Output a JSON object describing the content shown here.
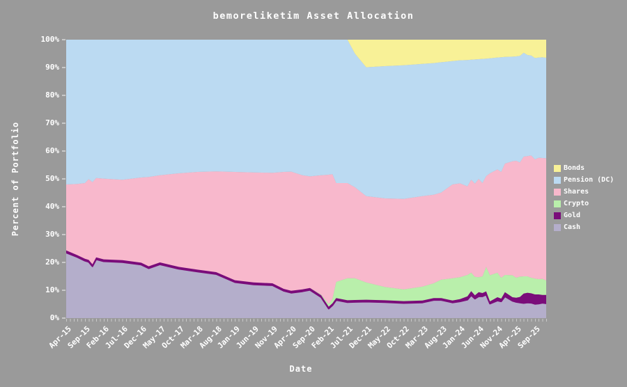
{
  "title": "bemoreliketim Asset Allocation",
  "axes": {
    "y_label": "Percent of Portfolio",
    "x_label": "Date",
    "y_tick_labels": [
      "0%",
      "10%",
      "20%",
      "30%",
      "40%",
      "50%",
      "60%",
      "70%",
      "80%",
      "90%",
      "100%"
    ]
  },
  "colors": {
    "background": "#9a9a9a",
    "text": "#ffffff",
    "tick": "#c9c9c9"
  },
  "legend": {
    "items": [
      {
        "label": "Bonds",
        "color": "#f8f197"
      },
      {
        "label": "Pension (DC)",
        "color": "#bbdaf2"
      },
      {
        "label": "Shares",
        "color": "#f8b8cc"
      },
      {
        "label": "Crypto",
        "color": "#b9efab"
      },
      {
        "label": "Gold",
        "color": "#7a0d7a"
      },
      {
        "label": "Cash",
        "color": "#b4aecb"
      }
    ]
  },
  "chart_data": {
    "type": "area",
    "stacked": true,
    "title": "bemoreliketim Asset Allocation",
    "xlabel": "Date",
    "ylabel": "Percent of Portfolio",
    "ylim": [
      0,
      100
    ],
    "grid": false,
    "legend_position": "right",
    "x_unit": "months since Apr-2015",
    "x_range": [
      0,
      128
    ],
    "x_axis_ticks": {
      "months": [
        0,
        5,
        10,
        15,
        20,
        25,
        30,
        35,
        40,
        45,
        50,
        55,
        60,
        65,
        70,
        75,
        80,
        85,
        90,
        95,
        100,
        105,
        110,
        115,
        120,
        125
      ],
      "labels": [
        "Apr-15",
        "Sep-15",
        "Feb-16",
        "Jul-16",
        "Dec-16",
        "May-17",
        "Oct-17",
        "Mar-18",
        "Aug-18",
        "Jan-19",
        "Jun-19",
        "Nov-19",
        "Apr-20",
        "Sep-20",
        "Feb-21",
        "Jul-21",
        "Dec-21",
        "May-22",
        "Oct-22",
        "Mar-23",
        "Aug-23",
        "Jan-24",
        "Jun-24",
        "Nov-24",
        "Apr-25",
        "Sep-25"
      ]
    },
    "x_months": [
      0,
      3,
      5,
      6,
      7,
      8,
      10,
      15,
      20,
      22,
      25,
      30,
      35,
      40,
      45,
      50,
      55,
      58,
      60,
      63,
      65,
      68,
      70,
      71,
      72,
      75,
      77,
      80,
      85,
      90,
      95,
      98,
      100,
      103,
      105,
      107,
      108,
      109,
      110,
      111,
      112,
      113,
      115,
      116,
      117,
      119,
      120,
      121,
      122,
      123,
      124,
      125,
      126,
      127,
      128
    ],
    "x_dates": [
      "Apr-15",
      "Jul-15",
      "Sep-15",
      "Oct-15",
      "Nov-15",
      "Dec-15",
      "Feb-16",
      "Jul-16",
      "Dec-16",
      "Feb-17",
      "May-17",
      "Oct-17",
      "Mar-18",
      "Aug-18",
      "Jan-19",
      "Jun-19",
      "Nov-19",
      "Feb-20",
      "Apr-20",
      "Jul-20",
      "Sep-20",
      "Dec-20",
      "Feb-21",
      "Mar-21",
      "Apr-21",
      "Jul-21",
      "Sep-21",
      "Dec-21",
      "May-22",
      "Oct-22",
      "Mar-23",
      "Jun-23",
      "Aug-23",
      "Nov-23",
      "Jan-24",
      "Mar-24",
      "Apr-24",
      "May-24",
      "Jun-24",
      "Jul-24",
      "Aug-24",
      "Sep-24",
      "Nov-24",
      "Dec-24",
      "Jan-25",
      "Mar-25",
      "Apr-25",
      "May-25",
      "Jun-25",
      "Jul-25",
      "Aug-25",
      "Sep-25",
      "Oct-25",
      "Nov-25",
      "Dec-25"
    ],
    "series_bottom_to_top": [
      {
        "name": "cash",
        "label": "Cash",
        "color": "#b4aecb",
        "stroke": false,
        "values": [
          23.5,
          21.9,
          20.6,
          20.2,
          18.6,
          21.1,
          20.4,
          20.1,
          19.2,
          17.9,
          19.3,
          17.7,
          16.7,
          15.8,
          12.9,
          12.1,
          11.8,
          9.8,
          9.1,
          9.6,
          10.1,
          7.5,
          3.4,
          4.6,
          6.5,
          5.7,
          5.8,
          5.9,
          5.7,
          5.4,
          5.6,
          6.5,
          6.5,
          5.6,
          6.0,
          6.6,
          8.2,
          7.0,
          7.8,
          7.8,
          8.4,
          5.2,
          6.3,
          6.0,
          7.8,
          6.2,
          5.8,
          5.6,
          5.4,
          5.6,
          5.5,
          5.1,
          5.2,
          5.5,
          5.3
        ]
      },
      {
        "name": "gold",
        "label": "Gold",
        "color": "#7a0d7a",
        "stroke": true,
        "values": [
          0.8,
          0.7,
          0.7,
          0.7,
          0.7,
          0.7,
          0.7,
          0.7,
          0.7,
          0.7,
          0.7,
          0.7,
          0.7,
          0.7,
          0.7,
          0.7,
          0.7,
          0.7,
          0.7,
          0.7,
          0.7,
          0.7,
          0.7,
          0.7,
          0.7,
          0.7,
          0.7,
          0.7,
          0.7,
          0.7,
          0.7,
          0.7,
          0.7,
          0.7,
          0.8,
          1.2,
          1.5,
          1.2,
          1.5,
          1.2,
          1.2,
          0.8,
          1.2,
          1.0,
          1.5,
          1.3,
          1.5,
          2.0,
          3.4,
          3.5,
          3.4,
          3.4,
          3.3,
          2.8,
          3.0
        ]
      },
      {
        "name": "crypto",
        "label": "Crypto",
        "color": "#b9efab",
        "stroke": false,
        "values": [
          0,
          0,
          0,
          0,
          0,
          0,
          0,
          0,
          0,
          0,
          0,
          0,
          0,
          0,
          0,
          0,
          0,
          0,
          0,
          0,
          0,
          0.2,
          1.0,
          1.6,
          5.8,
          7.9,
          7.8,
          6.2,
          4.8,
          4.2,
          5.0,
          5.3,
          6.6,
          8.0,
          7.9,
          7.7,
          6.6,
          6.6,
          5.4,
          6.0,
          8.8,
          9.4,
          8.8,
          7.5,
          6.2,
          7.9,
          7.2,
          7.3,
          6.2,
          5.9,
          5.6,
          5.7,
          5.5,
          5.8,
          5.2
        ]
      },
      {
        "name": "shares",
        "label": "Shares",
        "color": "#f8b8cc",
        "stroke": false,
        "values": [
          23.7,
          25.6,
          27.2,
          29.0,
          29.5,
          28.5,
          29.0,
          28.9,
          30.6,
          32.1,
          31.3,
          33.6,
          35.1,
          36.2,
          38.9,
          39.5,
          39.7,
          42.0,
          42.8,
          41.0,
          40.1,
          42.9,
          46.4,
          44.8,
          35.5,
          34.2,
          32.7,
          31.0,
          31.8,
          32.5,
          32.5,
          31.8,
          31.3,
          33.7,
          33.7,
          31.8,
          33.4,
          33.5,
          35.3,
          33.5,
          32.6,
          36.6,
          37.1,
          38.0,
          40.0,
          40.9,
          42.0,
          41.0,
          43.0,
          43.2,
          43.9,
          42.8,
          43.6,
          43.4,
          43.9
        ]
      },
      {
        "name": "pension",
        "label": "Pension (DC)",
        "color": "#bbdaf2",
        "stroke": false,
        "values": [
          52.0,
          51.8,
          51.5,
          50.1,
          51.2,
          49.7,
          49.9,
          50.3,
          49.5,
          49.3,
          48.7,
          48.0,
          47.5,
          47.3,
          47.5,
          47.7,
          47.8,
          47.5,
          47.4,
          48.7,
          49.1,
          48.7,
          48.5,
          48.3,
          51.5,
          51.5,
          48.0,
          46.3,
          47.5,
          48.0,
          47.5,
          47.3,
          46.8,
          44.3,
          44.2,
          45.4,
          43.1,
          44.6,
          43.0,
          44.6,
          42.2,
          41.3,
          40.2,
          41.2,
          38.3,
          37.6,
          37.5,
          38.3,
          37.3,
          36.3,
          35.9,
          36.4,
          36.0,
          36.2,
          36.1
        ]
      },
      {
        "name": "bonds",
        "label": "Bonds",
        "color": "#f8f197",
        "stroke": false,
        "values": [
          0,
          0,
          0,
          0,
          0,
          0,
          0,
          0,
          0,
          0,
          0,
          0,
          0,
          0,
          0,
          0,
          0,
          0,
          0,
          0,
          0,
          0,
          0,
          0,
          0,
          0,
          5.0,
          9.9,
          9.5,
          9.2,
          8.7,
          8.4,
          8.1,
          7.7,
          7.4,
          7.3,
          7.2,
          7.1,
          7.0,
          6.9,
          6.8,
          6.7,
          6.4,
          6.3,
          6.2,
          6.1,
          6.0,
          5.8,
          4.7,
          5.5,
          5.7,
          6.6,
          6.4,
          6.3,
          6.5
        ]
      }
    ]
  }
}
